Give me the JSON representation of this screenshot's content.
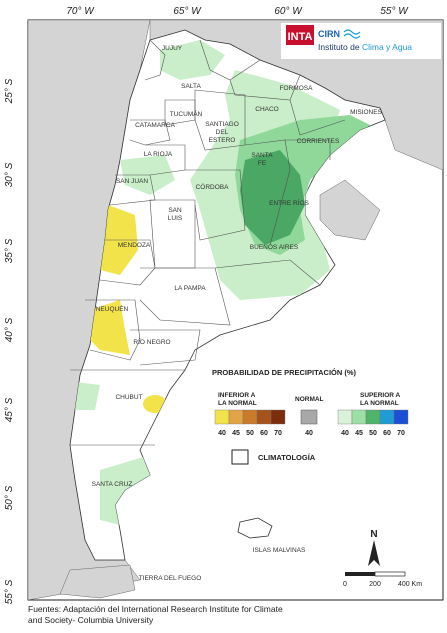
{
  "axes": {
    "longitudes": [
      "70° W",
      "65° W",
      "60° W",
      "55° W"
    ],
    "latitudes": [
      "25° S",
      "30° S",
      "35° S",
      "40° S",
      "45° S",
      "50° S",
      "55° S"
    ]
  },
  "logo": {
    "inta": "INTA",
    "cirn": "CIRN",
    "institute_prefix": "Instituto de ",
    "institute_highlight": "Clima y Agua"
  },
  "provinces": {
    "jujuy": "JUJUY",
    "salta": "SALTA",
    "formosa": "FORMOSA",
    "tucuman": "TUCUMÁN",
    "chaco": "CHACO",
    "misiones": "MISIONES",
    "catamarca": "CATAMARCA",
    "santiago1": "SANTIAGO",
    "santiago2": "DEL",
    "santiago3": "ESTERO",
    "corrientes": "CORRIENTES",
    "la_rioja": "LA RIOJA",
    "santa_fe1": "SANTA",
    "santa_fe2": "FE",
    "san_juan": "SAN JUAN",
    "cordoba": "CÓRDOBA",
    "entre_rios": "ENTRE RÍOS",
    "san_luis1": "SAN",
    "san_luis2": "LUIS",
    "mendoza": "MENDOZA",
    "buenos_aires": "BUENOS AIRES",
    "la_pampa": "LA PAMPA",
    "neuquen": "NEUQUÉN",
    "rio_negro": "RÍO NEGRO",
    "chubut": "CHUBUT",
    "santa_cruz": "SANTA CRUZ",
    "malvinas": "ISLAS MALVINAS",
    "tierra_del_fuego": "TIERRA DEL FUEGO"
  },
  "legend": {
    "title": "PROBABILIDAD DE PRECIPITACIÓN (%)",
    "below": {
      "label1": "INFERIOR A",
      "label2": "LA NORMAL",
      "values": [
        "40",
        "45",
        "50",
        "60",
        "70"
      ],
      "colors": [
        "#f2e34a",
        "#e3a347",
        "#c97a2a",
        "#a5521b",
        "#7a2e0c"
      ]
    },
    "normal": {
      "label": "NORMAL",
      "value": "40",
      "color": "#a8a8a8"
    },
    "above": {
      "label1": "SUPERIOR A",
      "label2": "LA NORMAL",
      "values": [
        "40",
        "45",
        "50",
        "60",
        "70"
      ],
      "colors": [
        "#d9f2d9",
        "#9be0a5",
        "#4fb36a",
        "#1f9bd6",
        "#1d4fd6"
      ]
    },
    "climatology": "CLIMATOLOGÍA"
  },
  "scale_bar": {
    "labels": [
      "0",
      "200",
      "400 Km"
    ],
    "north": "N"
  },
  "sources": {
    "line1": "Fuentes: Adaptación del International Research Institute for Climate",
    "line2": "and Society- Columbia University"
  },
  "colors": {
    "sea": "#ffffff",
    "land": "#ffffff",
    "neighbor": "#d4d4d4",
    "border": "#444444",
    "frame": "#222222"
  }
}
